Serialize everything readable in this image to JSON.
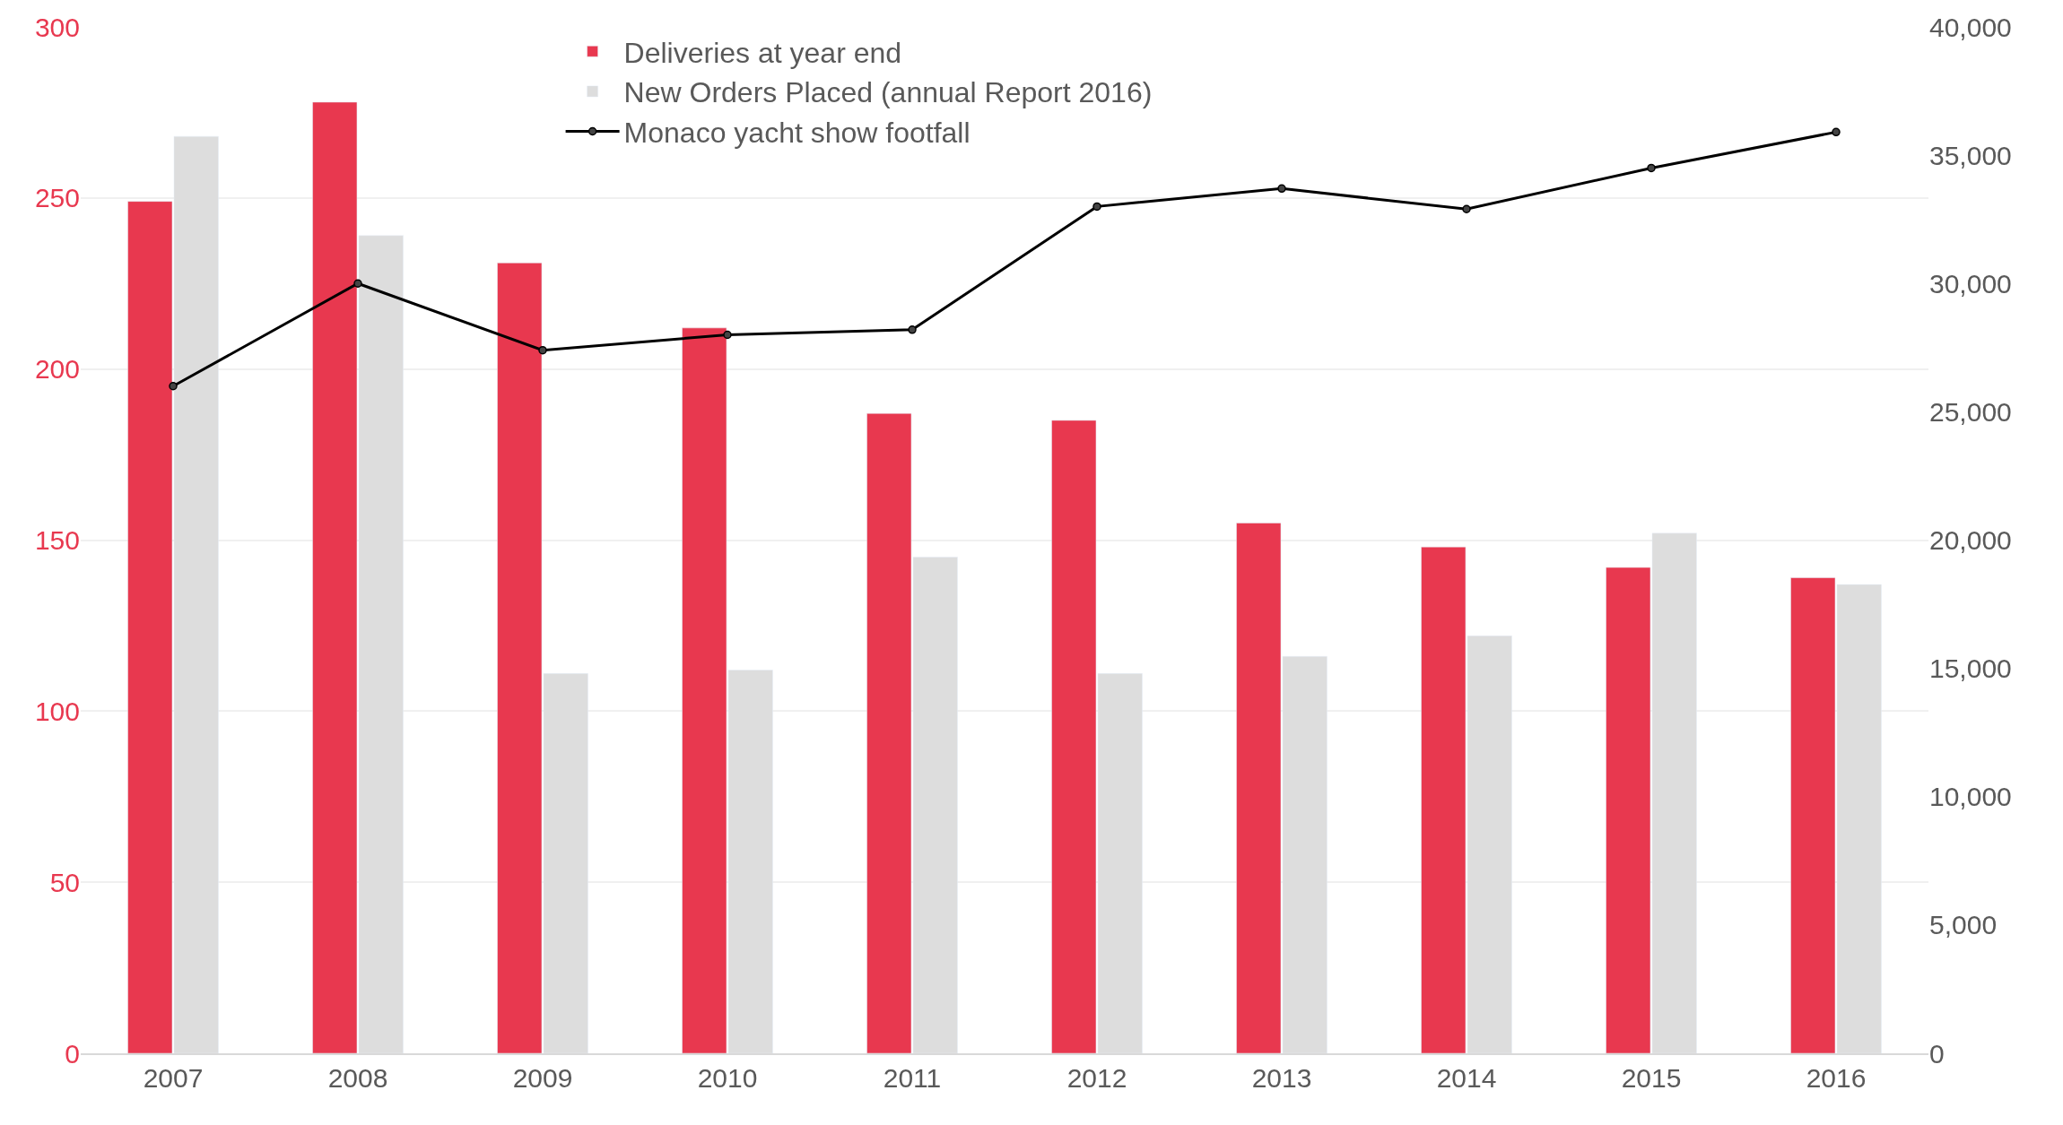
{
  "chart_data": {
    "type": "bar",
    "categories": [
      "2007",
      "2008",
      "2009",
      "2010",
      "2011",
      "2012",
      "2013",
      "2014",
      "2015",
      "2016"
    ],
    "series": [
      {
        "name": "Deliveries at year end",
        "color": "#e8384f",
        "values": [
          249,
          278,
          231,
          212,
          187,
          185,
          155,
          148,
          142,
          139
        ]
      },
      {
        "name": "New Orders Placed (annual Report 2016)",
        "color": "#dddddd",
        "values": [
          268,
          239,
          111,
          112,
          145,
          111,
          116,
          122,
          152,
          137
        ]
      },
      {
        "name": "Monaco yacht show footfall",
        "color": "#000000",
        "type": "line",
        "axis": "y2",
        "marker": "circle",
        "values": [
          26000,
          30000,
          27400,
          28000,
          28200,
          33000,
          33700,
          32900,
          34500,
          35900
        ]
      }
    ],
    "ylim": [
      0,
      300
    ],
    "yticks": [
      0,
      50,
      100,
      150,
      200,
      250,
      300
    ],
    "y2lim": [
      0,
      40000
    ],
    "y2ticks": [
      {
        "value": 0,
        "label": "0"
      },
      {
        "value": 5000,
        "label": "5,000"
      },
      {
        "value": 10000,
        "label": "10,000"
      },
      {
        "value": 15000,
        "label": "15,000"
      },
      {
        "value": 20000,
        "label": "20,000"
      },
      {
        "value": 25000,
        "label": "25,000"
      },
      {
        "value": 30000,
        "label": "30,000"
      },
      {
        "value": 35000,
        "label": "35,000"
      },
      {
        "value": 40000,
        "label": "40,000"
      }
    ],
    "grid": "y",
    "legend": "top"
  }
}
